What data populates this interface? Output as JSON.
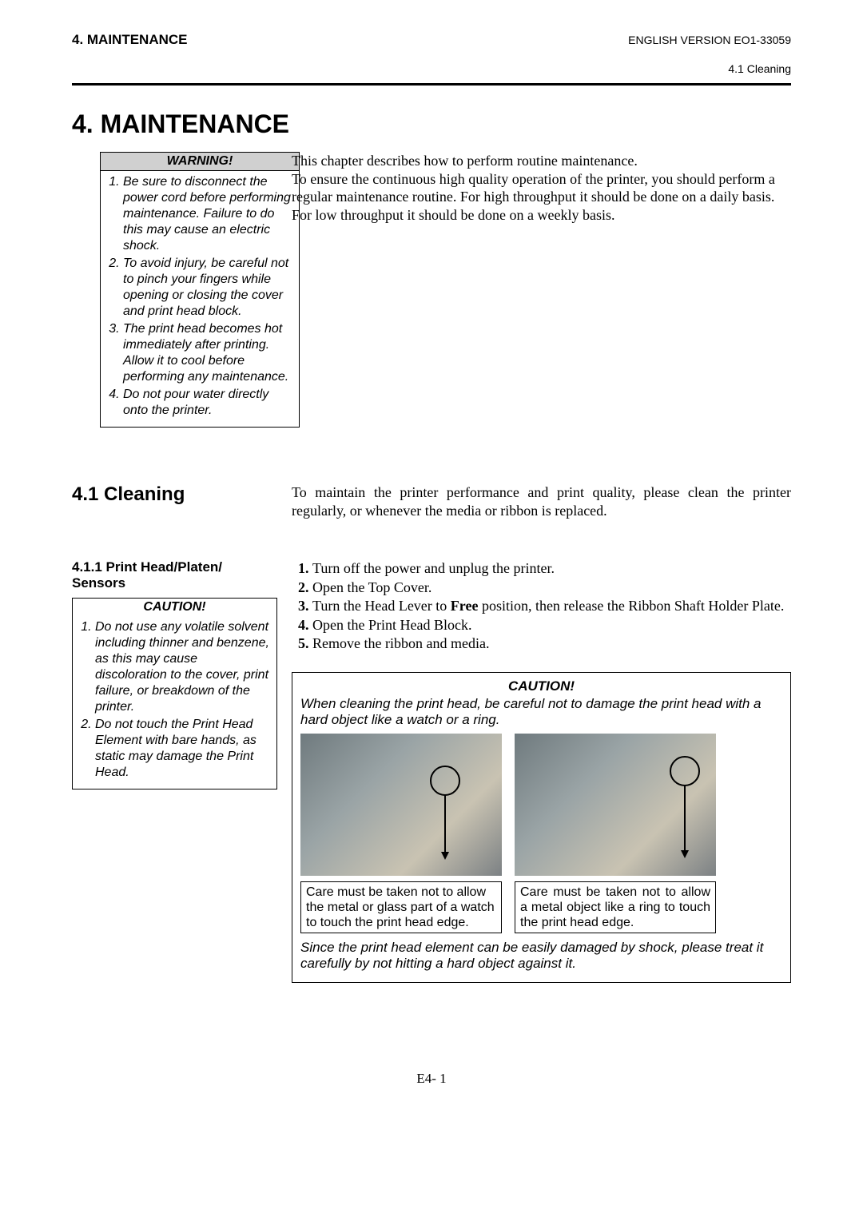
{
  "header": {
    "left": "4. MAINTENANCE",
    "right": "ENGLISH VERSION EO1-33059",
    "sub": "4.1 Cleaning"
  },
  "chapter_title": "4.  MAINTENANCE",
  "warning_box": {
    "title": "WARNING!",
    "items": [
      "Be sure to disconnect the power cord before performing maintenance.  Failure to do this may cause an electric shock.",
      "To avoid injury, be careful not to pinch your fingers while opening or closing the cover and print head block.",
      "The print head becomes hot immediately after printing.  Allow it to cool before performing any maintenance.",
      "Do not pour water directly onto the printer."
    ]
  },
  "intro_text": "This chapter describes how to perform routine maintenance.\nTo ensure the continuous high quality operation of the printer, you should perform a regular maintenance routine.  For high throughput it should be done on a daily basis.  For low throughput it should be done on a weekly basis.",
  "section": {
    "title": "4.1  Cleaning",
    "intro": "To maintain the printer performance and print quality, please clean the printer regularly, or whenever the media or ribbon is replaced."
  },
  "subsection": {
    "title": "4.1.1  Print Head/Platen/ Sensors"
  },
  "caution_box_left": {
    "title": "CAUTION!",
    "items": [
      "Do not use any volatile solvent including thinner and benzene, as this may cause discoloration to the cover, print failure, or breakdown of the printer.",
      "Do not touch the Print Head Element with bare hands, as static may damage the Print Head."
    ]
  },
  "steps": [
    "Turn off the power and unplug the printer.",
    "Open the Top Cover.",
    "Turn the Head Lever to __BOLD_FREE__ position, then release the Ribbon Shaft Holder Plate.",
    "Open the Print Head Block.",
    "Remove the ribbon and media."
  ],
  "bold_free": "Free",
  "right_caution": {
    "title": "CAUTION!",
    "intro": "When cleaning the print head, be careful not to damage the print head with a hard object like a watch or a ring.",
    "caption_left": "Care must be taken not to allow the metal or glass part of a watch to touch the print head edge.",
    "caption_right": "Care must be taken not to allow a metal object like a ring to touch the print head edge.",
    "footer": "Since the print head element can be easily damaged by shock, please treat it carefully by not hitting a hard object against it."
  },
  "page_number": "E4- 1"
}
